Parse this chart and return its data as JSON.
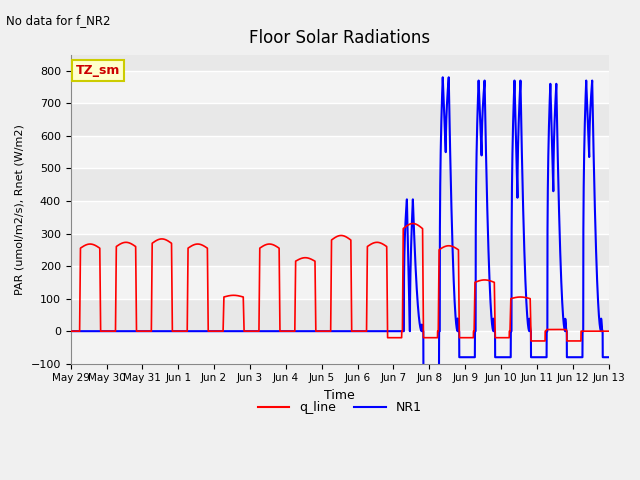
{
  "title": "Floor Solar Radiations",
  "xlabel": "Time",
  "ylabel": "PAR (umol/m2/s), Rnet (W/m2)",
  "ylim": [
    -100,
    850
  ],
  "yticks": [
    -100,
    0,
    100,
    200,
    300,
    400,
    500,
    600,
    700,
    800
  ],
  "annotation_text": "No data for f_NR2",
  "legend_label_text": "TZ_sm",
  "q_line_label": "q_line",
  "NR1_label": "NR1",
  "q_line_color": "#FF0000",
  "NR1_color": "#0000FF",
  "background_color": "#f0f0f0",
  "plot_bg_color": "#e8e8e8",
  "xtick_labels": [
    "May 29",
    "May 30",
    "May 31",
    "Jun 1",
    "Jun 2",
    "Jun 3",
    "Jun 4",
    "Jun 5",
    "Jun 6",
    "Jun 7",
    "Jun 8",
    "Jun 9",
    "Jun 10",
    "Jun 11",
    "Jun 12",
    "Jun 13"
  ],
  "q_peaks": [
    255,
    260,
    270,
    255,
    105,
    255,
    215,
    280,
    260,
    315,
    250,
    150,
    100,
    5,
    0,
    0
  ],
  "NR1_peaks": [
    0,
    0,
    0,
    0,
    0,
    0,
    0,
    0,
    0,
    405,
    780,
    770,
    770,
    760,
    770,
    750
  ],
  "NR1_secondary": [
    0,
    0,
    0,
    0,
    0,
    0,
    0,
    0,
    0,
    0,
    550,
    540,
    410,
    430,
    535,
    430
  ],
  "NR1_neg": [
    0,
    0,
    0,
    0,
    0,
    0,
    0,
    0,
    0,
    -120,
    -80,
    -80,
    -80,
    -80,
    -80,
    -80
  ]
}
